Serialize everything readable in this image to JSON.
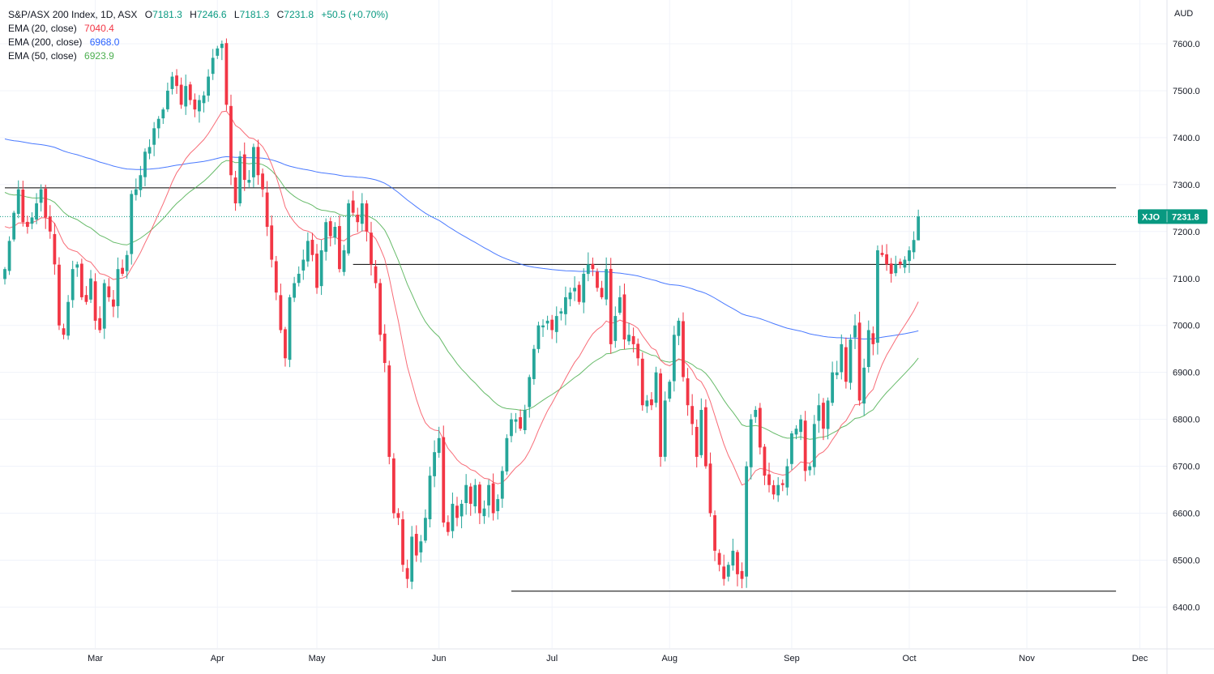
{
  "header": {
    "title": "S&P/ASX 200 Index, 1D, ASX",
    "open_label": "O",
    "open_value": "7181.3",
    "high_label": "H",
    "high_value": "7246.6",
    "low_label": "L",
    "low_value": "7181.3",
    "close_label": "C",
    "close_value": "7231.8",
    "change": "+50.5 (+0.70%)"
  },
  "indicators": [
    {
      "label": "EMA (20, close)",
      "value": "7040.4",
      "color": "#f23645"
    },
    {
      "label": "EMA (200, close)",
      "value": "6968.0",
      "color": "#2962ff"
    },
    {
      "label": "EMA (50, close)",
      "value": "6923.9",
      "color": "#089981"
    }
  ],
  "price_tag": {
    "symbol": "XJO",
    "value": "7231.8"
  },
  "currency": "AUD",
  "colors": {
    "up": "#26a69a",
    "down": "#f23645",
    "ema20": "#f7525f",
    "ema50": "#4caf50",
    "ema200": "#2962ff",
    "tag_bg": "#089981"
  },
  "chart_data": {
    "type": "candlestick",
    "ylim": [
      6350,
      7660
    ],
    "y_ticks": [
      6400,
      6500,
      6600,
      6700,
      6800,
      6900,
      7000,
      7100,
      7200,
      7300,
      7400,
      7500,
      7600
    ],
    "x_ticks": [
      "Mar",
      "Apr",
      "May",
      "Jun",
      "Jul",
      "Aug",
      "Sep",
      "Oct",
      "Nov",
      "Dec"
    ],
    "x_tick_index": [
      20,
      47,
      69,
      96,
      121,
      147,
      174,
      200,
      226,
      251
    ],
    "horizontal_lines": [
      {
        "y": 7293,
        "from": 0,
        "to": 245
      },
      {
        "y": 7130,
        "from": 77,
        "to": 245
      },
      {
        "y": 6434,
        "from": 112,
        "to": 245
      }
    ],
    "last_price": 7231.8,
    "closes": [
      7120,
      7180,
      7240,
      7290,
      7220,
      7210,
      7230,
      7260,
      7290,
      7230,
      7200,
      7130,
      7000,
      6980,
      7050,
      7120,
      7130,
      7060,
      7050,
      7100,
      7010,
      6990,
      7090,
      7060,
      7040,
      7120,
      7110,
      7150,
      7280,
      7290,
      7320,
      7370,
      7380,
      7420,
      7440,
      7460,
      7500,
      7530,
      7510,
      7470,
      7510,
      7480,
      7460,
      7480,
      7490,
      7530,
      7570,
      7590,
      7600,
      7470,
      7320,
      7260,
      7360,
      7310,
      7310,
      7380,
      7320,
      7290,
      7210,
      7140,
      7070,
      6990,
      6930,
      7060,
      7090,
      7110,
      7140,
      7180,
      7150,
      7080,
      7160,
      7220,
      7190,
      7210,
      7120,
      7160,
      7260,
      7240,
      7220,
      7260,
      7200,
      7130,
      7090,
      6980,
      6920,
      6720,
      6600,
      6590,
      6490,
      6460,
      6550,
      6510,
      6540,
      6590,
      6680,
      6730,
      6760,
      6580,
      6560,
      6620,
      6590,
      6620,
      6660,
      6620,
      6660,
      6600,
      6610,
      6660,
      6600,
      6630,
      6690,
      6760,
      6800,
      6800,
      6780,
      6820,
      6890,
      6950,
      7000,
      7000,
      7010,
      6990,
      7020,
      7030,
      7060,
      7070,
      7080,
      7050,
      7110,
      7130,
      7120,
      7080,
      7060,
      7120,
      6960,
      7020,
      7060,
      6970,
      6980,
      6960,
      6930,
      6830,
      6840,
      6830,
      6900,
      6720,
      6840,
      6880,
      6980,
      7010,
      6890,
      6830,
      6790,
      6720,
      6820,
      6700,
      6600,
      6520,
      6490,
      6460,
      6490,
      6520,
      6470,
      6460,
      6700,
      6800,
      6820,
      6740,
      6680,
      6660,
      6640,
      6660,
      6660,
      6700,
      6770,
      6780,
      6800,
      6690,
      6700,
      6790,
      6830,
      6780,
      6840,
      6900,
      6900,
      6960,
      6880,
      6970,
      7000,
      6840,
      6910,
      6990,
      6960,
      7160,
      7150,
      7130,
      7110,
      7130,
      7130,
      7140,
      7160,
      7182,
      7232
    ],
    "series": [
      {
        "name": "EMA (20, close)",
        "value": "7040.4"
      },
      {
        "name": "EMA (200, close)",
        "value": "6968.0"
      },
      {
        "name": "EMA (50, close)",
        "value": "6923.9"
      }
    ]
  }
}
